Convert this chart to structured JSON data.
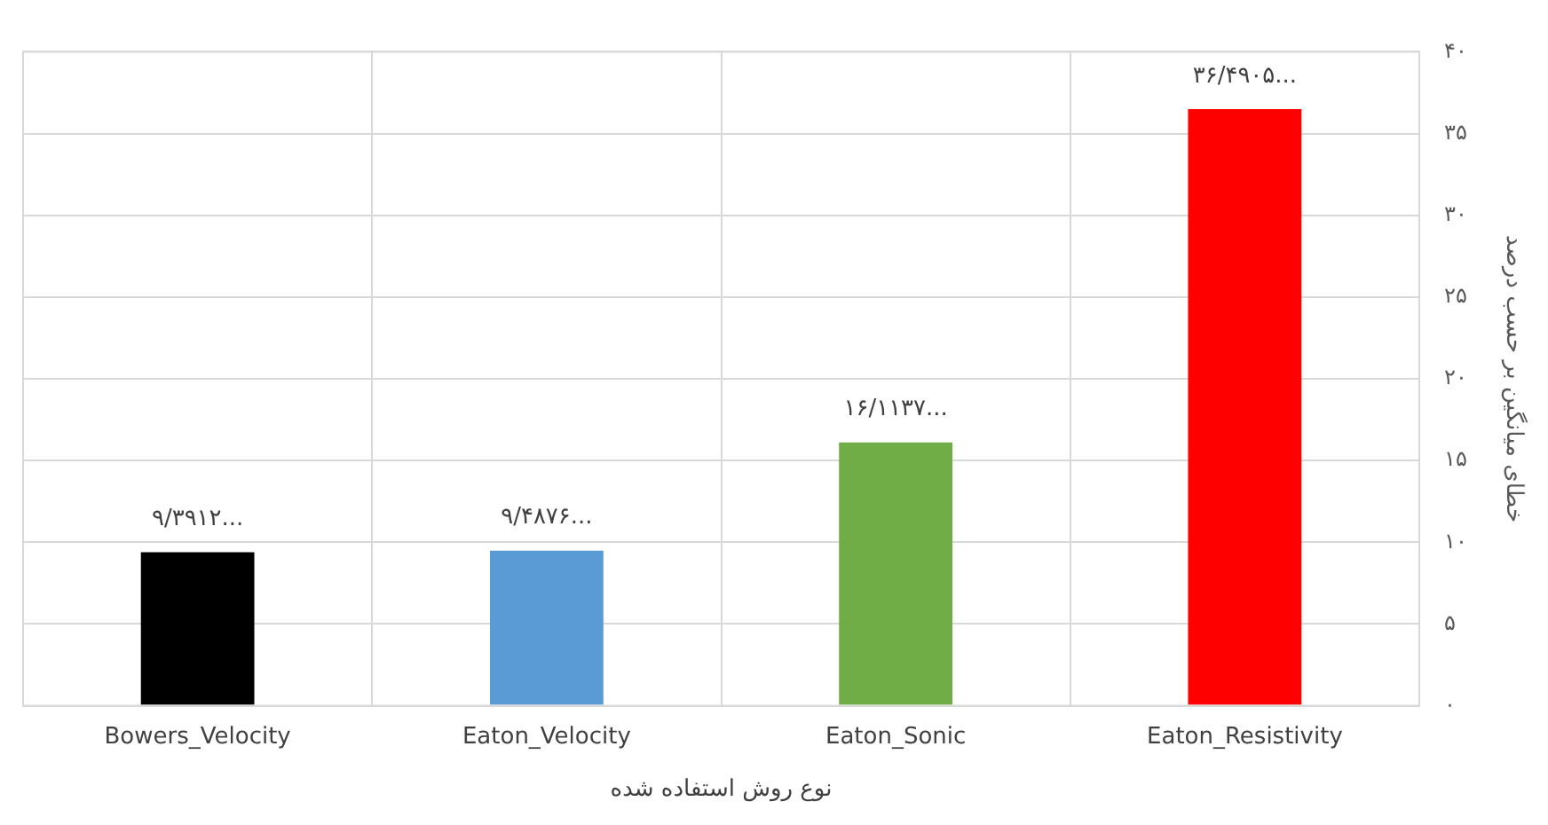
{
  "chart_data": {
    "type": "bar",
    "xlabel": "نوع روش استفاده شده",
    "ylabel": "خطای میانگین بر حسب درصد",
    "categories": [
      "Bowers_Velocity",
      "Eaton_Velocity",
      "Eaton_Sonic",
      "Eaton_Resistivity"
    ],
    "values": [
      9.3912,
      9.4876,
      16.1137,
      36.4905
    ],
    "colors": [
      "#000000",
      "#5b9bd5",
      "#70ad47",
      "#ff0000"
    ],
    "value_labels": [
      "۹/۳۹۱۲...",
      "۹/۴۸۷۶...",
      "۱۶/۱۱۳۷...",
      "۳۶/۴۹۰۵..."
    ],
    "ylim": [
      0,
      40
    ],
    "yticks": [
      {
        "value": 0,
        "label": "۰"
      },
      {
        "value": 5,
        "label": "۵"
      },
      {
        "value": 10,
        "label": "۱۰"
      },
      {
        "value": 15,
        "label": "۱۵"
      },
      {
        "value": 20,
        "label": "۲۰"
      },
      {
        "value": 25,
        "label": "۲۵"
      },
      {
        "value": 30,
        "label": "۳۰"
      },
      {
        "value": 35,
        "label": "۳۵"
      },
      {
        "value": 40,
        "label": "۴۰"
      }
    ],
    "grid": true,
    "legend": false
  }
}
